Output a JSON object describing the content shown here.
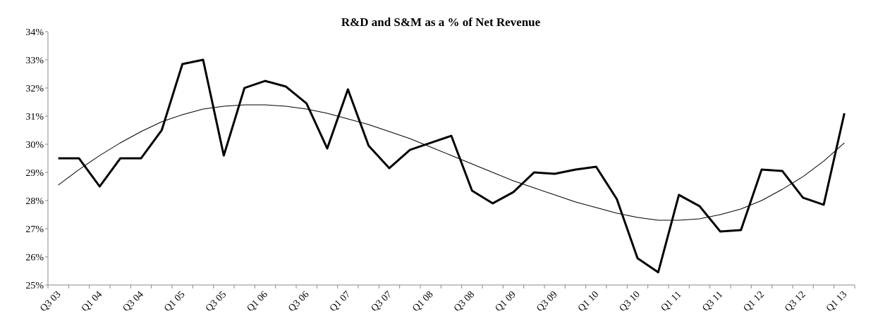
{
  "chart_data": {
    "type": "line",
    "title": "R&D and S&M as a % of Net Revenue",
    "categories": [
      "Q3 03",
      null,
      "Q1 04",
      null,
      "Q3 04",
      null,
      "Q1 05",
      null,
      "Q3 05",
      null,
      "Q1 06",
      null,
      "Q3 06",
      null,
      "Q1 07",
      null,
      "Q3 07",
      null,
      "Q1 08",
      null,
      "Q3 08",
      null,
      "Q1 09",
      null,
      "Q3 09",
      null,
      "Q1 10",
      null,
      "Q3 10",
      null,
      "Q1 11",
      null,
      "Q3 11",
      null,
      "Q1 12",
      null,
      "Q3 12",
      null,
      "Q1 13"
    ],
    "series": [
      {
        "color": "#000000",
        "values": [
          29.5,
          29.5,
          28.5,
          29.5,
          29.5,
          30.5,
          32.85,
          33.0,
          29.6,
          32.0,
          32.25,
          32.05,
          31.45,
          29.85,
          31.95,
          29.95,
          29.15,
          29.8,
          30.05,
          30.3,
          28.35,
          27.9,
          28.3,
          29.0,
          28.95,
          29.1,
          29.2,
          28.05,
          25.95,
          25.45,
          28.2,
          27.8,
          26.9,
          26.95,
          29.1,
          29.05,
          28.1,
          27.85,
          31.1
        ]
      },
      {
        "color": "#000000",
        "values": [
          28.55,
          29.1,
          29.6,
          30.05,
          30.45,
          30.8,
          31.05,
          31.25,
          31.35,
          31.4,
          31.4,
          31.35,
          31.25,
          31.1,
          30.9,
          30.7,
          30.45,
          30.2,
          29.9,
          29.6,
          29.3,
          29.0,
          28.7,
          28.45,
          28.2,
          27.95,
          27.75,
          27.55,
          27.4,
          27.3,
          27.3,
          27.35,
          27.5,
          27.7,
          28.0,
          28.4,
          28.85,
          29.4,
          30.05
        ]
      }
    ],
    "ylim": [
      25,
      34
    ],
    "yticks": [
      {
        "value": 25,
        "label": "25%"
      },
      {
        "value": 26,
        "label": "26%"
      },
      {
        "value": 27,
        "label": "27%"
      },
      {
        "value": 28,
        "label": "28%"
      },
      {
        "value": 29,
        "label": "29%"
      },
      {
        "value": 30,
        "label": "30%"
      },
      {
        "value": 31,
        "label": "31%"
      },
      {
        "value": 32,
        "label": "32%"
      },
      {
        "value": 33,
        "label": "33%"
      },
      {
        "value": 34,
        "label": "34%"
      }
    ],
    "grid": false
  }
}
